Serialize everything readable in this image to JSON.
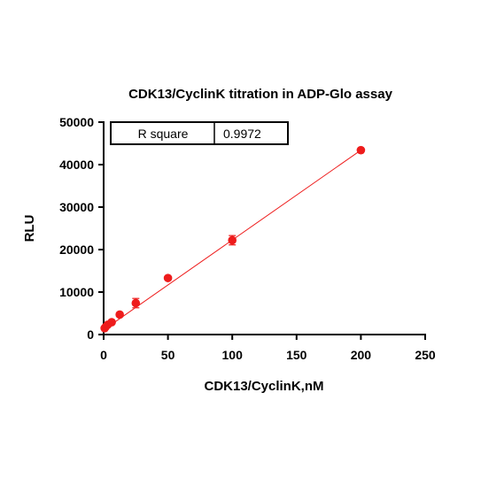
{
  "chart_data": {
    "type": "scatter",
    "title": "CDK13/CyclinK titration in ADP-Glo assay",
    "xlabel": "CDK13/CyclinK,nM",
    "ylabel": "RLU",
    "xlim": [
      0,
      250
    ],
    "ylim": [
      0,
      50000
    ],
    "x_ticks": [
      0,
      50,
      100,
      150,
      200,
      250
    ],
    "y_ticks": [
      0,
      10000,
      20000,
      30000,
      40000,
      50000
    ],
    "grid": false,
    "series": [
      {
        "x": [
          0.78,
          1.56,
          3.125,
          6.25,
          12.5,
          25,
          50,
          100,
          200
        ],
        "y": [
          1500,
          1800,
          2300,
          2900,
          4700,
          7400,
          13300,
          22200,
          43400
        ],
        "error": [
          200,
          200,
          300,
          300,
          400,
          1100,
          400,
          1100,
          200
        ],
        "color": "#ee1c1c"
      }
    ],
    "fit_line": {
      "x": [
        0,
        200
      ],
      "y": [
        1100,
        43400
      ],
      "color": "#ee1c1c"
    },
    "annotation": {
      "label": "R square",
      "value": "0.9972"
    }
  }
}
